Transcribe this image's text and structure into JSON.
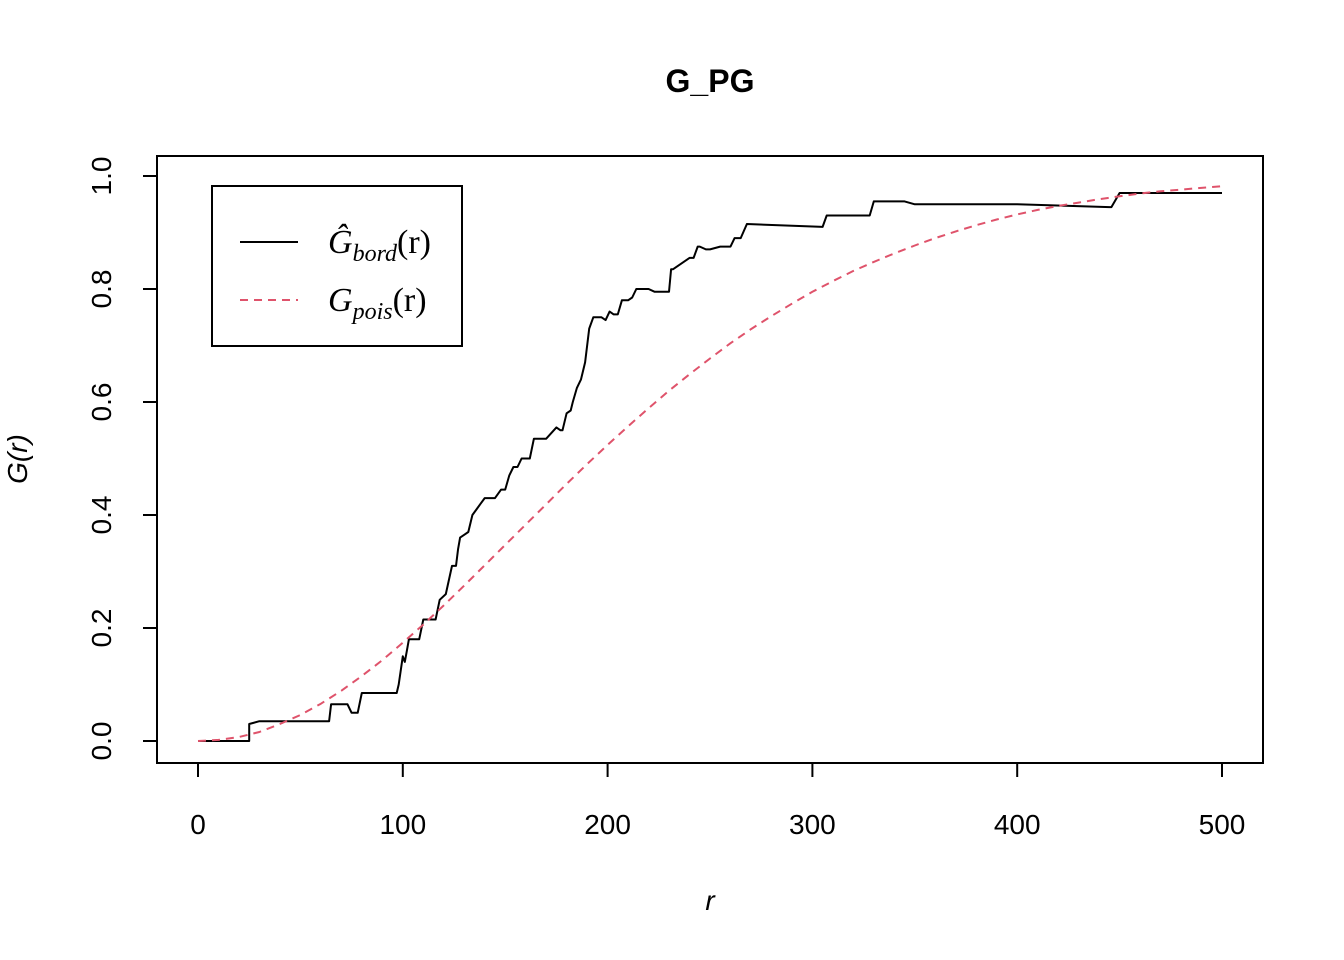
{
  "chart_data": {
    "type": "line",
    "title": "G_PG",
    "xlabel": "r",
    "ylabel": "G(r)",
    "xlim": [
      0,
      500
    ],
    "ylim": [
      0,
      1
    ],
    "x_ticks": [
      "0",
      "100",
      "200",
      "300",
      "400",
      "500"
    ],
    "y_ticks": [
      "0.0",
      "0.2",
      "0.4",
      "0.6",
      "0.8",
      "1.0"
    ],
    "grid": false,
    "legend_position": "top-left",
    "series": [
      {
        "name": "Ĝbord(r)",
        "legend_main": "Ĝ",
        "legend_sub": "bord",
        "legend_arg": "(r)",
        "color": "#000000",
        "style": "solid",
        "x": [
          0,
          25,
          25,
          30,
          64,
          65,
          73,
          75,
          78,
          80,
          97,
          98,
          100,
          101,
          102,
          103,
          108,
          110,
          113,
          116,
          118,
          121,
          124,
          126,
          127,
          128,
          130,
          132,
          134,
          136,
          138,
          140,
          143,
          145,
          148,
          150,
          152,
          154,
          156,
          158,
          160,
          162,
          164,
          166,
          168,
          170,
          175,
          177,
          178,
          180,
          182,
          183,
          185,
          187,
          189,
          191,
          193,
          195,
          197,
          199,
          201,
          203,
          205,
          207,
          210,
          212,
          214,
          216,
          218,
          220,
          223,
          230,
          231,
          232,
          240,
          242,
          244,
          245,
          248,
          250,
          255,
          260,
          262,
          265,
          268,
          305,
          307,
          310,
          325,
          328,
          330,
          345,
          350,
          400,
          445,
          446,
          450,
          480,
          500
        ],
        "y": [
          0,
          0,
          0.03,
          0.035,
          0.035,
          0.065,
          0.065,
          0.05,
          0.05,
          0.085,
          0.085,
          0.1,
          0.15,
          0.14,
          0.16,
          0.18,
          0.18,
          0.215,
          0.215,
          0.215,
          0.25,
          0.26,
          0.31,
          0.31,
          0.34,
          0.36,
          0.365,
          0.37,
          0.4,
          0.41,
          0.42,
          0.43,
          0.43,
          0.43,
          0.445,
          0.445,
          0.47,
          0.485,
          0.485,
          0.5,
          0.5,
          0.5,
          0.535,
          0.535,
          0.535,
          0.535,
          0.555,
          0.55,
          0.55,
          0.58,
          0.585,
          0.6,
          0.625,
          0.64,
          0.67,
          0.73,
          0.75,
          0.75,
          0.75,
          0.745,
          0.76,
          0.755,
          0.755,
          0.78,
          0.78,
          0.785,
          0.8,
          0.8,
          0.8,
          0.8,
          0.795,
          0.795,
          0.835,
          0.835,
          0.855,
          0.855,
          0.875,
          0.875,
          0.87,
          0.87,
          0.875,
          0.875,
          0.89,
          0.89,
          0.915,
          0.91,
          0.93,
          0.93,
          0.93,
          0.93,
          0.955,
          0.955,
          0.95,
          0.95,
          0.945,
          0.945,
          0.97,
          0.97,
          0.97
        ]
      },
      {
        "name": "Gpois(r)",
        "legend_main": "G",
        "legend_sub": "pois",
        "legend_arg": "(r)",
        "color": "#DF536B",
        "style": "dashed",
        "x": [
          0,
          10,
          20,
          30,
          40,
          50,
          60,
          70,
          80,
          90,
          100,
          110,
          120,
          130,
          140,
          150,
          160,
          170,
          180,
          190,
          200,
          210,
          220,
          230,
          240,
          250,
          260,
          270,
          280,
          290,
          300,
          310,
          320,
          330,
          340,
          350,
          360,
          370,
          380,
          390,
          400,
          410,
          420,
          430,
          440,
          450,
          460,
          470,
          480,
          490,
          500
        ],
        "y": [
          0.0,
          0.002,
          0.007,
          0.016,
          0.03,
          0.046,
          0.066,
          0.089,
          0.115,
          0.143,
          0.174,
          0.206,
          0.24,
          0.275,
          0.311,
          0.347,
          0.383,
          0.419,
          0.455,
          0.49,
          0.524,
          0.557,
          0.589,
          0.62,
          0.649,
          0.677,
          0.704,
          0.729,
          0.752,
          0.774,
          0.795,
          0.814,
          0.832,
          0.848,
          0.863,
          0.877,
          0.89,
          0.902,
          0.913,
          0.923,
          0.932,
          0.94,
          0.947,
          0.953,
          0.959,
          0.964,
          0.969,
          0.973,
          0.976,
          0.979,
          0.982
        ]
      }
    ]
  }
}
